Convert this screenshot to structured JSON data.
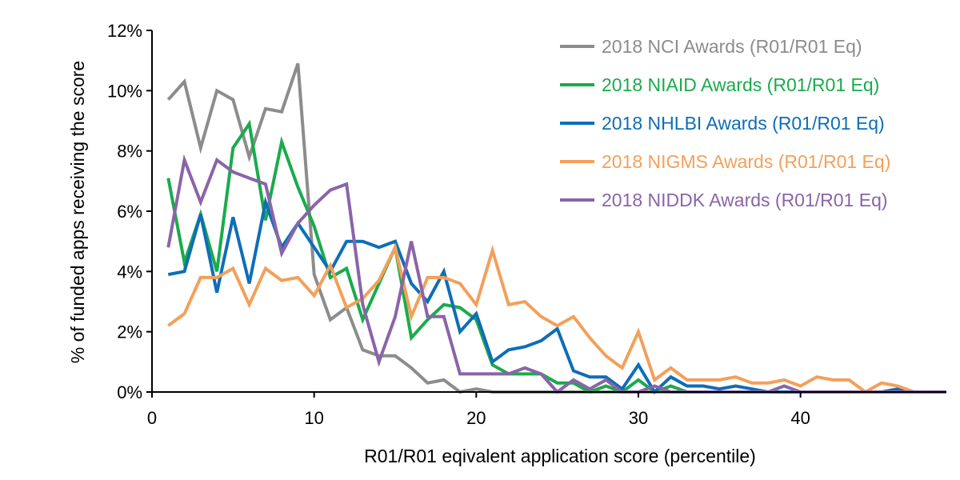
{
  "chart_data": {
    "type": "line",
    "title": "",
    "xlabel": "R01/R01 eqivalent application score (percentile)",
    "ylabel": "% of funded apps receiving the score",
    "xlim": [
      0,
      49
    ],
    "ylim": [
      0,
      12
    ],
    "xticks": [
      0,
      10,
      20,
      30,
      40
    ],
    "xtick_labels": [
      "0",
      "10",
      "20",
      "30",
      "40"
    ],
    "yticks": [
      0,
      2,
      4,
      6,
      8,
      10,
      12
    ],
    "ytick_labels": [
      "0%",
      "2%",
      "4%",
      "6%",
      "8%",
      "10%",
      "12%"
    ],
    "grid": false,
    "legend_position": "top-right",
    "x": [
      1,
      2,
      3,
      4,
      5,
      6,
      7,
      8,
      9,
      10,
      11,
      12,
      13,
      14,
      15,
      16,
      17,
      18,
      19,
      20,
      21,
      22,
      23,
      24,
      25,
      26,
      27,
      28,
      29,
      30,
      31,
      32,
      33,
      34,
      35,
      36,
      37,
      38,
      39,
      40,
      41,
      42,
      43,
      44,
      45,
      46,
      47,
      48,
      49
    ],
    "series": [
      {
        "name": "2018 NCI Awards (R01/R01 Eq)",
        "color": "#8c8c8c",
        "values": [
          9.7,
          10.3,
          8.1,
          10.0,
          9.7,
          7.8,
          9.4,
          9.3,
          10.9,
          3.9,
          2.4,
          2.8,
          1.4,
          1.2,
          1.2,
          0.8,
          0.3,
          0.4,
          0.0,
          0.1,
          0.0,
          0.0,
          0.0,
          0.0,
          0.0,
          0.0,
          0.0,
          0.0,
          0.0,
          0.0,
          0.0,
          0.0,
          0.0,
          0.0,
          0.0,
          0.0,
          0.0,
          0.0,
          0.0,
          0.0,
          0.0,
          0.0,
          0.0,
          0.0,
          0.0,
          0.0,
          0.0,
          0.0,
          0.0
        ]
      },
      {
        "name": "2018 NIAID Awards (R01/R01 Eq)",
        "color": "#1aab4b",
        "values": [
          7.1,
          4.3,
          5.9,
          4.0,
          8.1,
          8.9,
          5.7,
          8.3,
          6.8,
          5.5,
          3.8,
          4.1,
          2.4,
          3.6,
          4.8,
          1.8,
          2.4,
          2.9,
          2.8,
          2.4,
          0.9,
          0.6,
          0.6,
          0.6,
          0.3,
          0.3,
          0.0,
          0.2,
          0.0,
          0.4,
          0.0,
          0.2,
          0.0,
          0.0,
          0.0,
          0.0,
          0.0,
          0.0,
          0.0,
          0.0,
          0.0,
          0.0,
          0.0,
          0.0,
          0.0,
          0.0,
          0.0,
          0.0,
          0.0
        ]
      },
      {
        "name": "2018 NHLBI Awards (R01/R01 Eq)",
        "color": "#0e6eb8",
        "values": [
          3.9,
          4.0,
          5.9,
          3.3,
          5.8,
          3.6,
          6.3,
          4.8,
          5.6,
          4.8,
          4.0,
          5.0,
          5.0,
          4.8,
          5.0,
          3.6,
          3.0,
          4.0,
          2.0,
          2.6,
          1.0,
          1.4,
          1.5,
          1.7,
          2.1,
          0.7,
          0.5,
          0.5,
          0.1,
          0.9,
          0.0,
          0.5,
          0.2,
          0.2,
          0.1,
          0.2,
          0.1,
          0.0,
          0.0,
          0.0,
          0.0,
          0.0,
          0.0,
          0.0,
          0.0,
          0.1,
          0.0,
          0.0,
          0.0
        ]
      },
      {
        "name": "2018 NIGMS Awards (R01/R01 Eq)",
        "color": "#f3a05a",
        "values": [
          2.2,
          2.6,
          3.8,
          3.8,
          4.1,
          2.9,
          4.1,
          3.7,
          3.8,
          3.2,
          4.2,
          2.8,
          3.1,
          3.7,
          4.8,
          2.5,
          3.8,
          3.8,
          3.6,
          2.9,
          4.7,
          2.9,
          3.0,
          2.5,
          2.2,
          2.5,
          1.8,
          1.2,
          0.8,
          2.0,
          0.4,
          0.8,
          0.4,
          0.4,
          0.4,
          0.5,
          0.3,
          0.3,
          0.4,
          0.2,
          0.5,
          0.4,
          0.4,
          0.0,
          0.3,
          0.2,
          0.0,
          0.0,
          0.0
        ]
      },
      {
        "name": "2018 NIDDK Awards (R01/R01 Eq)",
        "color": "#8a64a8",
        "values": [
          4.8,
          7.7,
          6.3,
          7.7,
          7.3,
          7.1,
          6.9,
          4.6,
          5.6,
          6.2,
          6.7,
          6.9,
          2.9,
          1.0,
          2.5,
          5.0,
          2.5,
          2.5,
          0.6,
          0.6,
          0.6,
          0.6,
          0.8,
          0.6,
          0.0,
          0.4,
          0.1,
          0.4,
          0.0,
          0.0,
          0.2,
          0.0,
          0.0,
          0.0,
          0.0,
          0.0,
          0.0,
          0.0,
          0.2,
          0.0,
          0.0,
          0.0,
          0.0,
          0.0,
          0.0,
          0.0,
          0.0,
          0.0,
          0.0
        ]
      }
    ]
  }
}
